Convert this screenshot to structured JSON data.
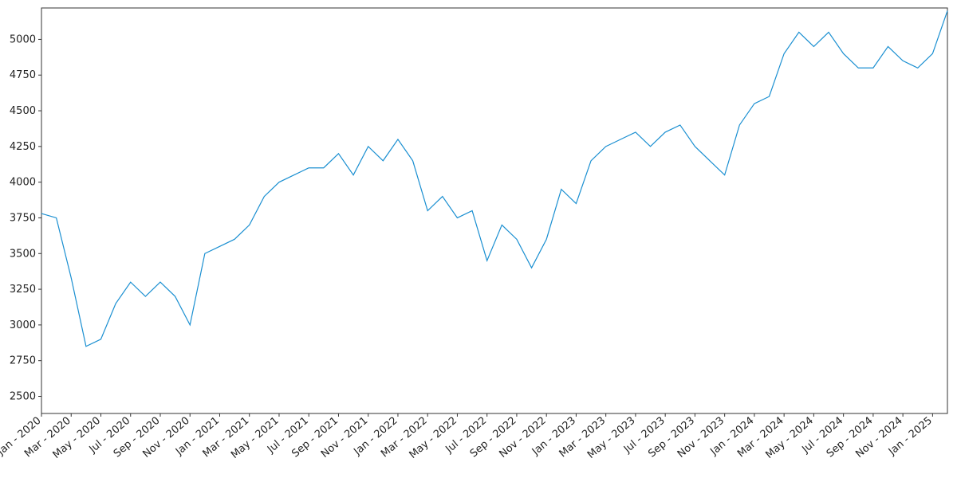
{
  "chart_data": {
    "type": "line",
    "x": [
      "2020-01",
      "2020-02",
      "2020-03",
      "2020-04",
      "2020-05",
      "2020-06",
      "2020-07",
      "2020-08",
      "2020-09",
      "2020-10",
      "2020-11",
      "2020-12",
      "2021-01",
      "2021-02",
      "2021-03",
      "2021-04",
      "2021-05",
      "2021-06",
      "2021-07",
      "2021-08",
      "2021-09",
      "2021-10",
      "2021-11",
      "2021-12",
      "2022-01",
      "2022-02",
      "2022-03",
      "2022-04",
      "2022-05",
      "2022-06",
      "2022-07",
      "2022-08",
      "2022-09",
      "2022-10",
      "2022-11",
      "2022-12",
      "2023-01",
      "2023-02",
      "2023-03",
      "2023-04",
      "2023-05",
      "2023-06",
      "2023-07",
      "2023-08",
      "2023-09",
      "2023-10",
      "2023-11",
      "2023-12",
      "2024-01",
      "2024-02",
      "2024-03",
      "2024-04",
      "2024-05",
      "2024-06",
      "2024-07",
      "2024-08",
      "2024-09",
      "2024-10",
      "2024-11",
      "2024-12",
      "2025-01",
      "2025-02"
    ],
    "series": [
      {
        "color": "#1a8fd1",
        "values": [
          3780,
          3750,
          3330,
          2850,
          2900,
          3150,
          3300,
          3200,
          3300,
          3200,
          3000,
          3500,
          3550,
          3600,
          3700,
          3900,
          4000,
          4050,
          4100,
          4100,
          4200,
          4050,
          4250,
          4150,
          4300,
          4150,
          3800,
          3900,
          3750,
          3800,
          3450,
          3700,
          3600,
          3400,
          3600,
          3950,
          3850,
          4150,
          4250,
          4300,
          4350,
          4250,
          4350,
          4400,
          4250,
          4150,
          4050,
          4400,
          4550,
          4600,
          4900,
          5050,
          4950,
          5050,
          4900,
          4800,
          4800,
          4950,
          4850,
          4800,
          4900,
          5200
        ]
      }
    ],
    "xlim": [
      "2020-01",
      "2025-02"
    ],
    "xticks": [
      {
        "value": "2020-01",
        "label": "Jan - 2020"
      },
      {
        "value": "2020-03",
        "label": "Mar - 2020"
      },
      {
        "value": "2020-05",
        "label": "May - 2020"
      },
      {
        "value": "2020-07",
        "label": "Jul - 2020"
      },
      {
        "value": "2020-09",
        "label": "Sep - 2020"
      },
      {
        "value": "2020-11",
        "label": "Nov - 2020"
      },
      {
        "value": "2021-01",
        "label": "Jan - 2021"
      },
      {
        "value": "2021-03",
        "label": "Mar - 2021"
      },
      {
        "value": "2021-05",
        "label": "May - 2021"
      },
      {
        "value": "2021-07",
        "label": "Jul - 2021"
      },
      {
        "value": "2021-09",
        "label": "Sep - 2021"
      },
      {
        "value": "2021-11",
        "label": "Nov - 2021"
      },
      {
        "value": "2022-01",
        "label": "Jan - 2022"
      },
      {
        "value": "2022-03",
        "label": "Mar - 2022"
      },
      {
        "value": "2022-05",
        "label": "May - 2022"
      },
      {
        "value": "2022-07",
        "label": "Jul - 2022"
      },
      {
        "value": "2022-09",
        "label": "Sep - 2022"
      },
      {
        "value": "2022-11",
        "label": "Nov - 2022"
      },
      {
        "value": "2023-01",
        "label": "Jan - 2023"
      },
      {
        "value": "2023-03",
        "label": "Mar - 2023"
      },
      {
        "value": "2023-05",
        "label": "May - 2023"
      },
      {
        "value": "2023-07",
        "label": "Jul - 2023"
      },
      {
        "value": "2023-09",
        "label": "Sep - 2023"
      },
      {
        "value": "2023-11",
        "label": "Nov - 2023"
      },
      {
        "value": "2024-01",
        "label": "Jan - 2024"
      },
      {
        "value": "2024-03",
        "label": "Mar - 2024"
      },
      {
        "value": "2024-05",
        "label": "May - 2024"
      },
      {
        "value": "2024-07",
        "label": "Jul - 2024"
      },
      {
        "value": "2024-09",
        "label": "Sep - 2024"
      },
      {
        "value": "2024-11",
        "label": "Nov - 2024"
      },
      {
        "value": "2025-01",
        "label": "Jan - 2025"
      }
    ],
    "ylim": [
      2380,
      5220
    ],
    "yticks": [
      2500,
      2750,
      3000,
      3250,
      3500,
      3750,
      4000,
      4250,
      4500,
      4750,
      5000
    ],
    "grid": false
  }
}
